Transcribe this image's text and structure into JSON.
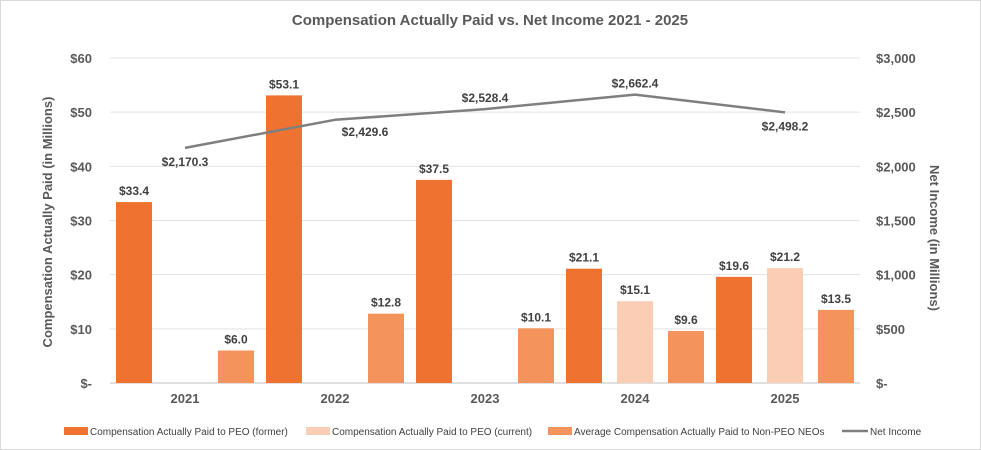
{
  "chart_data": {
    "type": "bar",
    "title": "Compensation Actually Paid vs. Net Income 2021 - 2025",
    "categories": [
      "2021",
      "2022",
      "2023",
      "2024",
      "2025"
    ],
    "ylabel": "Compensation Actually Paid (in Millions)",
    "y2label": "Net Income (in Millions)",
    "ylim": [
      0,
      60
    ],
    "y2lim": [
      0,
      3000
    ],
    "yticks": [
      "$-",
      "$10",
      "$20",
      "$30",
      "$40",
      "$50",
      "$60"
    ],
    "y2ticks": [
      "$-",
      "$500",
      "$1,000",
      "$1,500",
      "$2,000",
      "$2,500",
      "$3,000"
    ],
    "series": [
      {
        "name": "Compensation Actually Paid to PEO (former)",
        "type": "bar",
        "axis": "left",
        "color": "#F07230",
        "values": [
          33.4,
          53.1,
          37.5,
          21.1,
          19.6
        ],
        "labels": [
          "$33.4",
          "$53.1",
          "$37.5",
          "$21.1",
          "$19.6"
        ]
      },
      {
        "name": "Compensation Actually Paid to PEO (current)",
        "type": "bar",
        "axis": "left",
        "color": "#FBCDB4",
        "values": [
          null,
          null,
          null,
          15.1,
          21.2
        ],
        "labels": [
          null,
          null,
          null,
          "$15.1",
          "$21.2"
        ]
      },
      {
        "name": "Average Compensation Actually Paid to Non-PEO NEOs",
        "type": "bar",
        "axis": "left",
        "color": "#F5935C",
        "values": [
          6.0,
          12.8,
          10.1,
          9.6,
          13.5
        ],
        "labels": [
          "$6.0",
          "$12.8",
          "$10.1",
          "$9.6",
          "$13.5"
        ]
      },
      {
        "name": "Net Income",
        "type": "line",
        "axis": "right",
        "color": "#7F7F7F",
        "values": [
          2170.3,
          2429.6,
          2528.4,
          2662.4,
          2498.2
        ],
        "labels": [
          "$2,170.3",
          "$2,429.6",
          "$2,528.4",
          "$2,662.4",
          "$2,498.2"
        ]
      }
    ],
    "legend_position": "bottom"
  }
}
